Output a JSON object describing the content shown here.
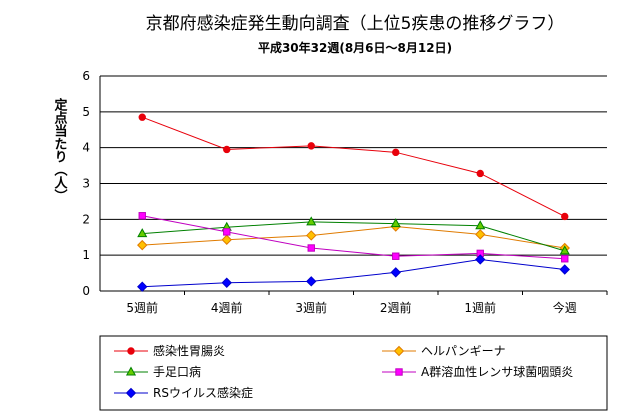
{
  "chart_data": {
    "type": "line",
    "title": "京都府感染症発生動向調査（上位5疾患の推移グラフ）",
    "subtitle": "平成30年32週(8月6日～8月12日)",
    "ylabel": "定点当たり（人）",
    "xlabel": "",
    "categories": [
      "5週前",
      "4週前",
      "3週前",
      "2週前",
      "1週前",
      "今週"
    ],
    "ylim": [
      0,
      6
    ],
    "yticks": [
      0,
      1,
      2,
      3,
      4,
      5,
      6
    ],
    "grid": true,
    "legend_position": "bottom",
    "series": [
      {
        "name": "感染性胃腸炎",
        "color": "#e8000b",
        "marker": "circle",
        "values": [
          4.85,
          3.95,
          4.05,
          3.87,
          3.28,
          2.08
        ]
      },
      {
        "name": "ヘルパンギーナ",
        "color": "#e07b00",
        "marker": "diamond",
        "fill": "#ffc000",
        "values": [
          1.28,
          1.43,
          1.55,
          1.8,
          1.58,
          1.2
        ]
      },
      {
        "name": "手足口病",
        "color": "#008000",
        "marker": "triangle",
        "fill": "#66cc00",
        "values": [
          1.6,
          1.78,
          1.93,
          1.88,
          1.82,
          1.12
        ]
      },
      {
        "name": "A群溶血性レンサ球菌咽頭炎",
        "color": "#c000c0",
        "marker": "square",
        "fill": "#ff00ff",
        "values": [
          2.1,
          1.65,
          1.2,
          0.97,
          1.05,
          0.9
        ]
      },
      {
        "name": "RSウイルス感染症",
        "color": "#0000cc",
        "marker": "diamond",
        "fill": "#0000ff",
        "values": [
          0.12,
          0.23,
          0.27,
          0.52,
          0.88,
          0.6
        ]
      }
    ]
  }
}
